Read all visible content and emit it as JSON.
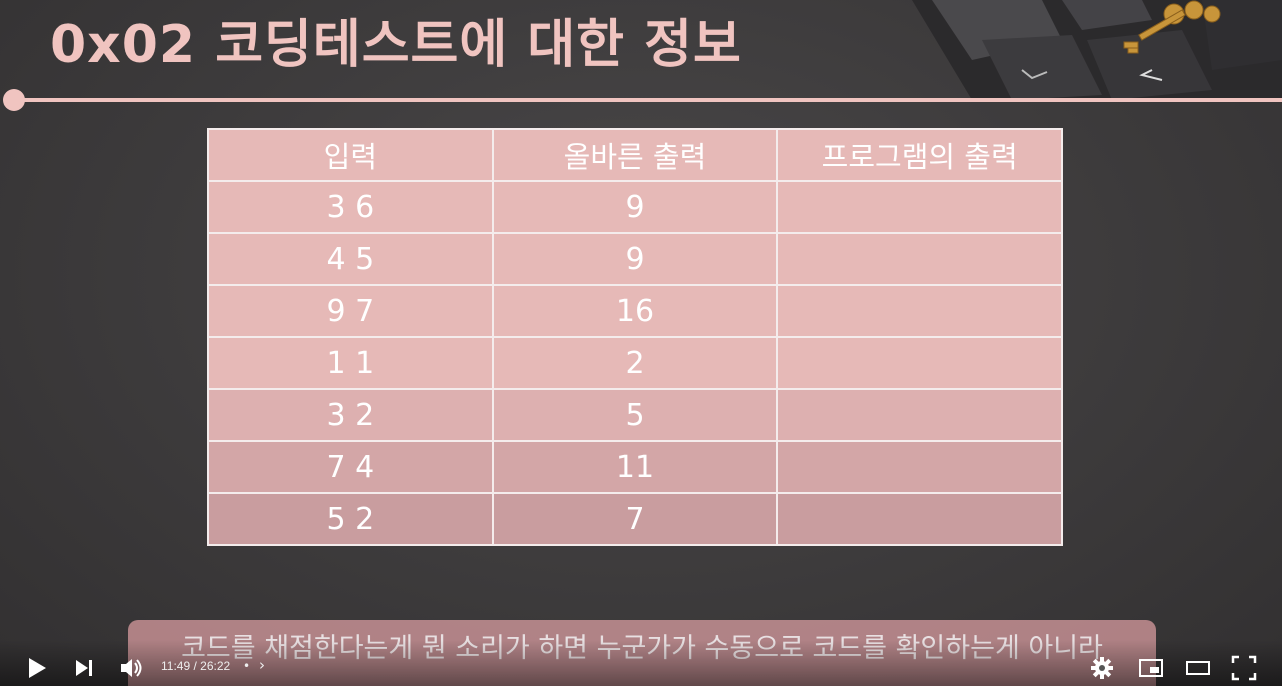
{
  "slide": {
    "title": "0x02  코딩테스트에 대한 정보",
    "table": {
      "headers": [
        "입력",
        "올바른 출력",
        "프로그램의 출력"
      ],
      "rows": [
        [
          "3 6",
          "9",
          ""
        ],
        [
          "4 5",
          "9",
          ""
        ],
        [
          "9 7",
          "16",
          ""
        ],
        [
          "1 1",
          "2",
          ""
        ],
        [
          "3 2",
          "5",
          ""
        ],
        [
          "7 4",
          "11",
          ""
        ],
        [
          "5 2",
          "7",
          ""
        ]
      ]
    }
  },
  "subtitle": "코드를 채점한다는게 뭔 소리가 하면 누군가가 수동으로 코드를 확인하는게 아니라",
  "player": {
    "time": "11:49 / 26:22",
    "separator": "•",
    "chapter_chevron": "›",
    "icons": [
      "play-icon",
      "next-icon",
      "volume-icon",
      "settings-icon",
      "miniplayer-icon",
      "theater-icon",
      "fullscreen-icon"
    ]
  },
  "colors": {
    "accent": "#f0c4c0",
    "table_cell": "#e6b9b7",
    "background": "#3f3d3e"
  }
}
